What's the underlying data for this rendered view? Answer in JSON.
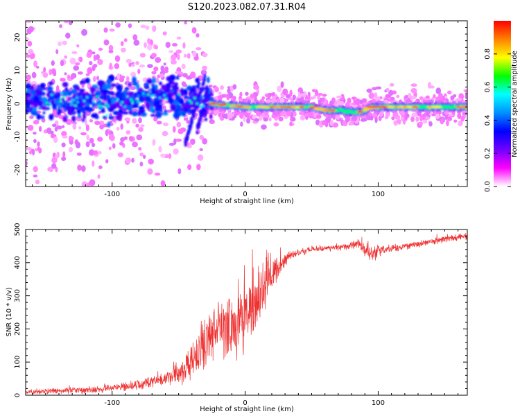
{
  "title": "S120.2023.082.07.31.R04",
  "chart_data": [
    {
      "type": "heatmap",
      "name": "spectrogram",
      "xlabel": "Height of straight line (km)",
      "ylabel": "Frequency (Hz)",
      "xlim": [
        -165,
        167
      ],
      "ylim": [
        -25,
        25
      ],
      "xticks": [
        -100,
        0,
        100
      ],
      "yticks": [
        -20,
        -10,
        0,
        10,
        20
      ],
      "colorbar": {
        "label": "Normalized spectral amplitude",
        "range": [
          0.0,
          1.0
        ],
        "ticks": [
          0.0,
          0.2,
          0.4,
          0.6,
          0.8
        ],
        "colors": [
          "#ffffff",
          "#ff00ff",
          "#7000ff",
          "#0000ff",
          "#0090ff",
          "#00ffff",
          "#00ff00",
          "#ffff00",
          "#ff8000",
          "#ff0000"
        ]
      },
      "ridge": [
        {
          "x": -160,
          "f": 1.5
        },
        {
          "x": -120,
          "f": 0.5
        },
        {
          "x": -80,
          "f": 1.5
        },
        {
          "x": -50,
          "f": 2.5
        },
        {
          "x": -25,
          "f": 0.0
        },
        {
          "x": 0,
          "f": -1.0
        },
        {
          "x": 50,
          "f": -1.0
        },
        {
          "x": 60,
          "f": -2.0
        },
        {
          "x": 72,
          "f": -2.0
        },
        {
          "x": 80,
          "f": -2.5
        },
        {
          "x": 88,
          "f": -2.5
        },
        {
          "x": 95,
          "f": -1.0
        },
        {
          "x": 167,
          "f": -1.0
        }
      ],
      "branches": [
        [
          {
            "x": -45,
            "f": -12
          },
          {
            "x": -40,
            "f": -5
          },
          {
            "x": -30,
            "f": 8
          }
        ],
        [
          {
            "x": -36,
            "f": -8
          },
          {
            "x": -32,
            "f": -2
          },
          {
            "x": -28,
            "f": 5
          }
        ]
      ]
    },
    {
      "type": "line",
      "name": "snr",
      "xlabel": "Height of straight line (km)",
      "ylabel": "SNR (10 * v/v)",
      "xlim": [
        -165,
        167
      ],
      "ylim": [
        0,
        500
      ],
      "xticks": [
        -100,
        0,
        100
      ],
      "yticks": [
        0,
        100,
        200,
        300,
        400,
        500
      ],
      "color": "#ee3030",
      "baseline": [
        {
          "x": -165,
          "y": 10
        },
        {
          "x": -120,
          "y": 15
        },
        {
          "x": -80,
          "y": 30
        },
        {
          "x": -60,
          "y": 50
        },
        {
          "x": -45,
          "y": 80
        },
        {
          "x": -35,
          "y": 130
        },
        {
          "x": -20,
          "y": 200
        },
        {
          "x": -5,
          "y": 210
        },
        {
          "x": 5,
          "y": 260
        },
        {
          "x": 15,
          "y": 330
        },
        {
          "x": 25,
          "y": 390
        },
        {
          "x": 35,
          "y": 425
        },
        {
          "x": 50,
          "y": 440
        },
        {
          "x": 70,
          "y": 445
        },
        {
          "x": 85,
          "y": 455
        },
        {
          "x": 95,
          "y": 425
        },
        {
          "x": 105,
          "y": 440
        },
        {
          "x": 130,
          "y": 455
        },
        {
          "x": 150,
          "y": 470
        },
        {
          "x": 167,
          "y": 480
        }
      ],
      "noise_amplitude": [
        {
          "x": -165,
          "y": 8
        },
        {
          "x": -60,
          "y": 20
        },
        {
          "x": -45,
          "y": 60
        },
        {
          "x": -35,
          "y": 90
        },
        {
          "x": -15,
          "y": 110
        },
        {
          "x": 5,
          "y": 120
        },
        {
          "x": 15,
          "y": 90
        },
        {
          "x": 25,
          "y": 40
        },
        {
          "x": 35,
          "y": 12
        },
        {
          "x": 80,
          "y": 12
        },
        {
          "x": 95,
          "y": 30
        },
        {
          "x": 110,
          "y": 14
        },
        {
          "x": 167,
          "y": 12
        }
      ]
    }
  ]
}
